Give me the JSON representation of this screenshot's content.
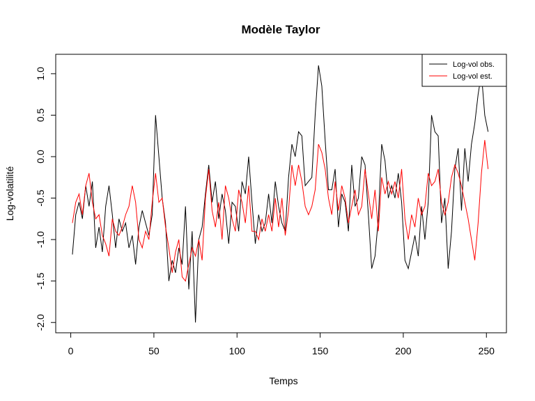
{
  "chart_data": {
    "type": "line",
    "title": "Modèle Taylor",
    "x_label": "Temps",
    "y_label": "Log-volatilité",
    "x": [
      1,
      3,
      5,
      7,
      9,
      11,
      13,
      15,
      17,
      19,
      21,
      23,
      25,
      27,
      29,
      31,
      33,
      35,
      37,
      39,
      41,
      43,
      45,
      47,
      49,
      51,
      53,
      55,
      57,
      59,
      61,
      63,
      65,
      67,
      69,
      71,
      73,
      75,
      77,
      79,
      81,
      83,
      85,
      87,
      89,
      91,
      93,
      95,
      97,
      99,
      101,
      103,
      105,
      107,
      109,
      111,
      113,
      115,
      117,
      119,
      121,
      123,
      125,
      127,
      129,
      131,
      133,
      135,
      137,
      139,
      141,
      143,
      145,
      147,
      149,
      151,
      153,
      155,
      157,
      159,
      161,
      163,
      165,
      167,
      169,
      171,
      173,
      175,
      177,
      179,
      181,
      183,
      185,
      187,
      189,
      191,
      193,
      195,
      197,
      199,
      201,
      203,
      205,
      207,
      209,
      211,
      213,
      215,
      217,
      219,
      221,
      223,
      225,
      227,
      229,
      231,
      233,
      235,
      237,
      239,
      241,
      243,
      245,
      247,
      249,
      251
    ],
    "series": [
      {
        "name": "Log-vol obs.",
        "color": "#000000",
        "values": [
          -1.18,
          -0.7,
          -0.55,
          -0.75,
          -0.35,
          -0.6,
          -0.3,
          -1.1,
          -0.85,
          -1.15,
          -0.6,
          -0.35,
          -0.7,
          -1.1,
          -0.75,
          -0.9,
          -0.8,
          -1.1,
          -0.95,
          -1.3,
          -0.85,
          -0.65,
          -0.8,
          -0.95,
          -0.7,
          0.5,
          0.0,
          -0.5,
          -0.8,
          -1.5,
          -1.25,
          -1.4,
          -1.1,
          -1.3,
          -0.6,
          -1.6,
          -0.9,
          -2.0,
          -1.0,
          -0.85,
          -0.45,
          -0.1,
          -0.55,
          -0.3,
          -0.75,
          -0.45,
          -0.65,
          -1.05,
          -0.55,
          -0.6,
          -0.9,
          -0.3,
          -0.45,
          0.0,
          -0.55,
          -1.05,
          -0.7,
          -0.9,
          -0.8,
          -0.45,
          -0.8,
          -0.3,
          -0.6,
          -0.8,
          -0.9,
          -0.25,
          0.15,
          0.0,
          0.3,
          0.25,
          -0.35,
          -0.3,
          -0.25,
          0.5,
          1.1,
          0.85,
          0.2,
          -0.4,
          -0.4,
          -0.15,
          -0.85,
          -0.45,
          -0.55,
          -0.9,
          -0.1,
          -0.6,
          -0.5,
          0.0,
          -0.1,
          -0.7,
          -1.35,
          -1.2,
          -0.75,
          0.15,
          -0.05,
          -0.5,
          -0.35,
          -0.5,
          -0.2,
          -0.55,
          -1.25,
          -1.35,
          -1.15,
          -0.95,
          -1.2,
          -0.6,
          -1.0,
          -0.55,
          0.5,
          0.3,
          0.25,
          -0.8,
          -0.5,
          -1.35,
          -0.9,
          -0.15,
          0.1,
          -0.65,
          0.1,
          -0.3,
          0.15,
          0.4,
          0.75,
          1.0,
          0.5,
          0.3
        ]
      },
      {
        "name": "Log-vol est.",
        "color": "#ff0000",
        "values": [
          -0.8,
          -0.55,
          -0.45,
          -0.7,
          -0.35,
          -0.2,
          -0.55,
          -0.75,
          -0.7,
          -0.95,
          -1.05,
          -1.2,
          -0.75,
          -0.9,
          -0.95,
          -0.85,
          -0.7,
          -0.6,
          -0.35,
          -0.55,
          -1.0,
          -1.1,
          -0.9,
          -1.0,
          -0.55,
          -0.2,
          -0.55,
          -0.5,
          -0.85,
          -1.1,
          -1.4,
          -1.15,
          -1.0,
          -1.45,
          -1.5,
          -1.3,
          -1.1,
          -1.2,
          -1.0,
          -1.25,
          -0.5,
          -0.15,
          -0.65,
          -0.85,
          -0.55,
          -1.0,
          -0.35,
          -0.5,
          -0.75,
          -0.9,
          -0.4,
          -0.55,
          -0.8,
          -0.35,
          -0.9,
          -0.9,
          -1.0,
          -0.75,
          -0.9,
          -0.7,
          -0.9,
          -0.5,
          -0.85,
          -0.5,
          -0.95,
          -0.65,
          -0.1,
          -0.35,
          -0.1,
          -0.3,
          -0.6,
          -0.7,
          -0.6,
          -0.4,
          0.15,
          0.05,
          -0.15,
          -0.5,
          -0.7,
          -0.3,
          -0.65,
          -0.35,
          -0.5,
          -0.8,
          -0.6,
          -0.4,
          -0.7,
          -0.6,
          -0.15,
          -0.45,
          -0.75,
          -0.4,
          -0.9,
          -0.25,
          -0.45,
          -0.3,
          -0.45,
          -0.3,
          -0.5,
          -0.15,
          -0.75,
          -1.0,
          -0.7,
          -0.85,
          -0.5,
          -0.7,
          -0.6,
          -0.2,
          -0.35,
          -0.3,
          -0.15,
          -0.55,
          -0.7,
          -0.55,
          -0.25,
          -0.1,
          -0.2,
          -0.35,
          -0.55,
          -0.75,
          -1.0,
          -1.25,
          -0.8,
          -0.2,
          0.2,
          -0.15
        ]
      }
    ],
    "xlim": [
      -9.04,
      262.04
    ],
    "xticks": [
      0,
      50,
      100,
      150,
      200,
      250
    ],
    "ylim": [
      -2.124,
      1.234
    ],
    "yticks": [
      {
        "value": -2.0,
        "label": "-2.0"
      },
      -1.5,
      {
        "value": -1.0,
        "label": "-1.0"
      },
      -0.5,
      {
        "value": 0.0,
        "label": "0.0"
      },
      0.5,
      {
        "value": 1.0,
        "label": "1.0"
      }
    ],
    "legend": "top-right"
  }
}
